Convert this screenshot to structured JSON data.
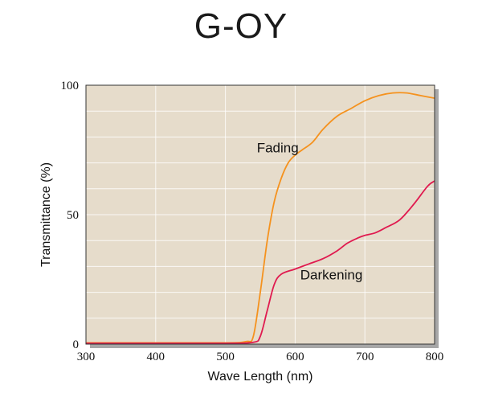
{
  "chart_data": {
    "type": "line",
    "title": "G-OY",
    "xlabel": "Wave Length (nm)",
    "ylabel": "Transmittance (%)",
    "xlim": [
      300,
      800
    ],
    "ylim": [
      0,
      100
    ],
    "x_ticks": [
      300,
      400,
      500,
      600,
      700,
      800
    ],
    "y_ticks": [
      0,
      50,
      100
    ],
    "grid": true,
    "background": "#e6dccb",
    "series": [
      {
        "name": "Fading",
        "color": "#f5921e",
        "points": [
          [
            300,
            0.5
          ],
          [
            400,
            0.5
          ],
          [
            500,
            0.5
          ],
          [
            530,
            1
          ],
          [
            540,
            3
          ],
          [
            550,
            20
          ],
          [
            560,
            40
          ],
          [
            570,
            55
          ],
          [
            580,
            64
          ],
          [
            590,
            70
          ],
          [
            600,
            73
          ],
          [
            610,
            75
          ],
          [
            625,
            78
          ],
          [
            640,
            83
          ],
          [
            660,
            88
          ],
          [
            680,
            91
          ],
          [
            700,
            94
          ],
          [
            720,
            96
          ],
          [
            740,
            97
          ],
          [
            760,
            97
          ],
          [
            780,
            96
          ],
          [
            800,
            95
          ]
        ]
      },
      {
        "name": "Darkening",
        "color": "#e01a4f",
        "points": [
          [
            300,
            0.3
          ],
          [
            400,
            0.3
          ],
          [
            500,
            0.3
          ],
          [
            540,
            0.7
          ],
          [
            550,
            3
          ],
          [
            560,
            13
          ],
          [
            570,
            23
          ],
          [
            580,
            27
          ],
          [
            600,
            29
          ],
          [
            620,
            31
          ],
          [
            640,
            33
          ],
          [
            660,
            36
          ],
          [
            675,
            39
          ],
          [
            690,
            41
          ],
          [
            700,
            42
          ],
          [
            715,
            43
          ],
          [
            730,
            45
          ],
          [
            750,
            48
          ],
          [
            770,
            54
          ],
          [
            790,
            61
          ],
          [
            800,
            63
          ]
        ]
      }
    ],
    "annotations": [
      {
        "text": "Fading",
        "x": 575,
        "y": 74
      },
      {
        "text": "Darkening",
        "x": 652,
        "y": 25
      }
    ]
  }
}
